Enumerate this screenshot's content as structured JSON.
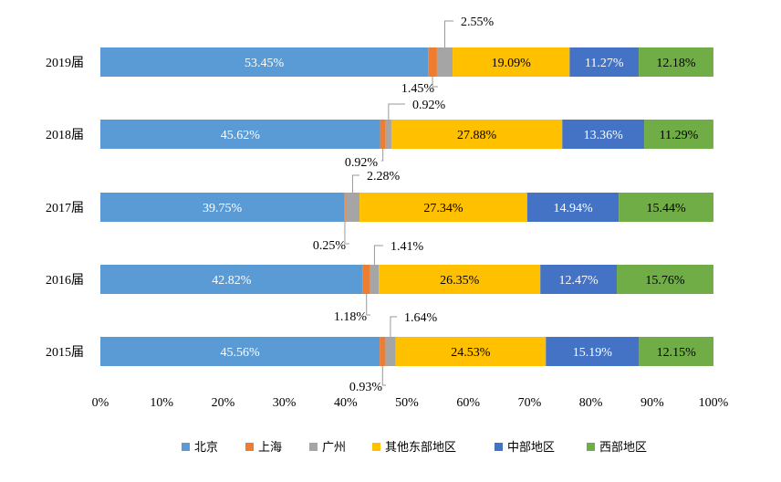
{
  "chart_data": {
    "type": "bar",
    "orientation": "horizontal",
    "stacked": true,
    "percent_stacked": true,
    "categories": [
      "2019届",
      "2018届",
      "2017届",
      "2016届",
      "2015届"
    ],
    "series": [
      {
        "name": "北京",
        "color": "#5B9BD5",
        "values": [
          53.45,
          45.62,
          39.75,
          42.82,
          45.56
        ],
        "labels": [
          "53.45%",
          "45.62%",
          "39.75%",
          "42.82%",
          "45.56%"
        ]
      },
      {
        "name": "上海",
        "color": "#ED7D31",
        "values": [
          1.45,
          0.92,
          0.25,
          1.18,
          0.93
        ],
        "labels": [
          "1.45%",
          "0.92%",
          "0.25%",
          "1.18%",
          "0.93%"
        ]
      },
      {
        "name": "广州",
        "color": "#A5A5A5",
        "values": [
          2.55,
          0.92,
          2.28,
          1.41,
          1.64
        ],
        "labels": [
          "2.55%",
          "0.92%",
          "2.28%",
          "1.41%",
          "1.64%"
        ]
      },
      {
        "name": "其他东部地区",
        "color": "#FFC000",
        "values": [
          19.09,
          27.88,
          27.34,
          26.35,
          24.53
        ],
        "labels": [
          "19.09%",
          "27.88%",
          "27.34%",
          "26.35%",
          "24.53%"
        ]
      },
      {
        "name": "中部地区",
        "color": "#4472C4",
        "values": [
          11.27,
          13.36,
          14.94,
          12.47,
          15.19
        ],
        "labels": [
          "11.27%",
          "13.36%",
          "14.94%",
          "12.47%",
          "15.19%"
        ]
      },
      {
        "name": "西部地区",
        "color": "#70AD47",
        "values": [
          12.18,
          11.29,
          15.44,
          15.76,
          12.15
        ],
        "labels": [
          "12.18%",
          "11.29%",
          "15.44%",
          "15.76%",
          "12.15%"
        ]
      }
    ],
    "xlim": [
      0,
      100
    ],
    "xticks": [
      "0%",
      "10%",
      "20%",
      "30%",
      "40%",
      "50%",
      "60%",
      "70%",
      "80%",
      "90%",
      "100%"
    ],
    "grid": false,
    "legend_position": "bottom"
  }
}
